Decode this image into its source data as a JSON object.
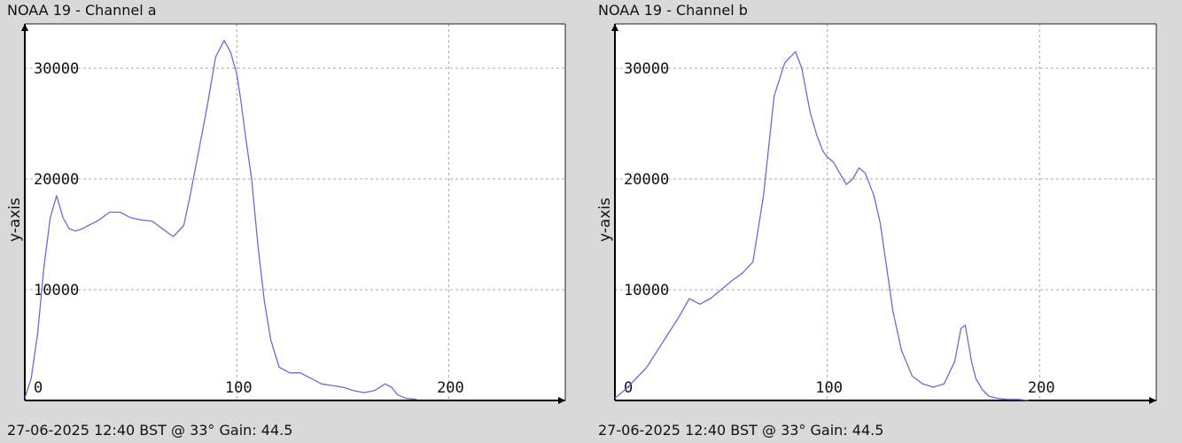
{
  "chart_data": [
    {
      "type": "line",
      "title": "NOAA 19 - Channel a",
      "footer": "27-06-2025 12:40 BST @ 33° Gain: 44.5",
      "ylabel": "y-axis",
      "xlabel": "",
      "xlim": [
        0,
        255
      ],
      "ylim": [
        0,
        34000
      ],
      "x_ticks": [
        0,
        100,
        200
      ],
      "y_ticks": [
        10000,
        20000,
        30000
      ],
      "grid": true,
      "line_color": "#6b6bd6",
      "series": [
        {
          "x": [
            0,
            3,
            6,
            9,
            12,
            15,
            18,
            21,
            24,
            27,
            30,
            35,
            40,
            45,
            50,
            55,
            60,
            65,
            70,
            75,
            78,
            82,
            86,
            90,
            94,
            97,
            100,
            102,
            104,
            107,
            110,
            113,
            116,
            120,
            125,
            130,
            140,
            150,
            155,
            160,
            165,
            170,
            173,
            176,
            180,
            185
          ],
          "y": [
            200,
            2000,
            6000,
            12000,
            16500,
            18500,
            16500,
            15500,
            15300,
            15500,
            15800,
            16300,
            17000,
            17000,
            16500,
            16300,
            16200,
            15500,
            14800,
            15800,
            18500,
            22500,
            26500,
            31000,
            32500,
            31500,
            29500,
            27000,
            24000,
            20000,
            14000,
            9000,
            5500,
            3000,
            2500,
            2500,
            1500,
            1200,
            900,
            700,
            900,
            1500,
            1200,
            500,
            200,
            100
          ]
        }
      ]
    },
    {
      "type": "line",
      "title": "NOAA 19 - Channel b",
      "footer": "27-06-2025 12:40 BST @ 33° Gain: 44.5",
      "ylabel": "y-axis",
      "xlabel": "",
      "xlim": [
        0,
        255
      ],
      "ylim": [
        0,
        34000
      ],
      "x_ticks": [
        0,
        100,
        200
      ],
      "y_ticks": [
        10000,
        20000,
        30000
      ],
      "grid": true,
      "line_color": "#6b6bd6",
      "series": [
        {
          "x": [
            0,
            5,
            10,
            15,
            20,
            25,
            30,
            35,
            40,
            45,
            50,
            55,
            60,
            65,
            70,
            75,
            80,
            85,
            88,
            90,
            92,
            95,
            98,
            100,
            103,
            106,
            109,
            112,
            115,
            118,
            122,
            125,
            128,
            131,
            135,
            140,
            145,
            150,
            155,
            160,
            163,
            165,
            168,
            170,
            173,
            176,
            180,
            185,
            190,
            195
          ],
          "y": [
            200,
            1000,
            2000,
            3000,
            4500,
            6000,
            7500,
            9200,
            8700,
            9200,
            10000,
            10800,
            11500,
            12500,
            18500,
            27500,
            30500,
            31500,
            30000,
            28000,
            26000,
            24000,
            22500,
            22000,
            21500,
            20500,
            19500,
            20000,
            21000,
            20500,
            18500,
            16000,
            12000,
            8000,
            4500,
            2200,
            1500,
            1200,
            1500,
            3500,
            6500,
            6800,
            3500,
            2000,
            1000,
            400,
            200,
            100,
            100,
            0
          ]
        }
      ]
    }
  ]
}
